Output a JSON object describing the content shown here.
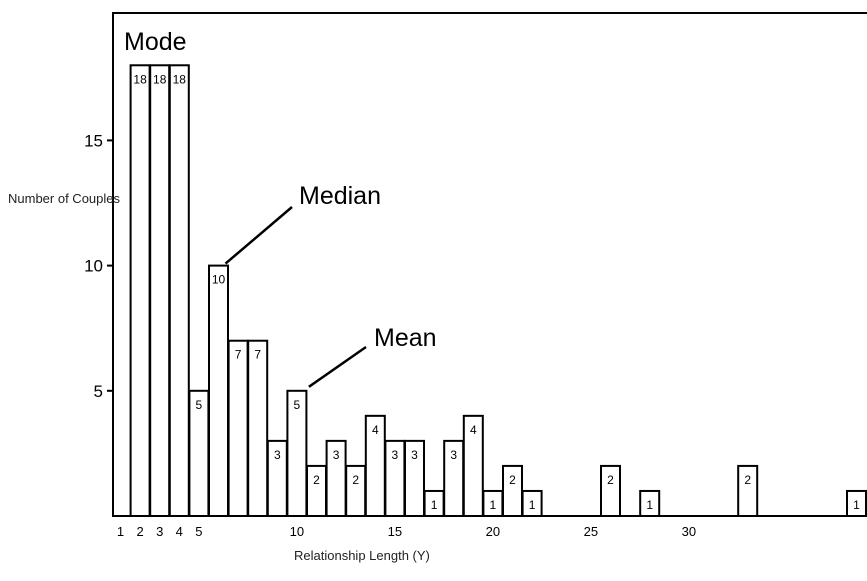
{
  "chart_data": {
    "type": "bar",
    "title": "",
    "xlabel": "Relationship Length (Y)",
    "ylabel": "Number of Couples",
    "ylim": [
      0,
      20
    ],
    "y_ticks": [
      5,
      10,
      15
    ],
    "x_tick_labels": [
      "1",
      "2",
      "3",
      "4",
      "5",
      "10",
      "15",
      "20",
      "25",
      "30"
    ],
    "bars": [
      {
        "x": 2,
        "value": 18
      },
      {
        "x": 3,
        "value": 18
      },
      {
        "x": 4,
        "value": 18
      },
      {
        "x": 5,
        "value": 5
      },
      {
        "x": 6,
        "value": 10
      },
      {
        "x": 7,
        "value": 7
      },
      {
        "x": 8,
        "value": 7
      },
      {
        "x": 9,
        "value": 3
      },
      {
        "x": 10,
        "value": 5
      },
      {
        "x": 11,
        "value": 2
      },
      {
        "x": 12,
        "value": 3
      },
      {
        "x": 13,
        "value": 2
      },
      {
        "x": 14,
        "value": 4
      },
      {
        "x": 15,
        "value": 3
      },
      {
        "x": 16,
        "value": 3
      },
      {
        "x": 17,
        "value": 1
      },
      {
        "x": 18,
        "value": 3
      },
      {
        "x": 19,
        "value": 4
      },
      {
        "x": 20,
        "value": 1
      },
      {
        "x": 21,
        "value": 2
      },
      {
        "x": 22,
        "value": 1
      },
      {
        "x": 26,
        "value": 2
      },
      {
        "x": 28,
        "value": 1
      },
      {
        "x": 33,
        "value": 2
      },
      {
        "x": 40,
        "value": 1
      }
    ],
    "annotations": [
      {
        "text": "Mode",
        "x": 3
      },
      {
        "text": "Median",
        "x": 6
      },
      {
        "text": "Mean",
        "x": 10
      }
    ],
    "grid": false,
    "legend": "none"
  }
}
